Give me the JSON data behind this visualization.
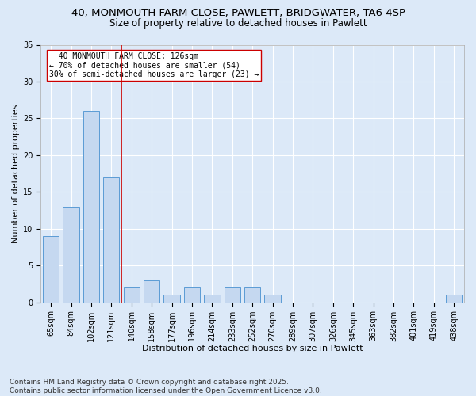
{
  "title_line1": "40, MONMOUTH FARM CLOSE, PAWLETT, BRIDGWATER, TA6 4SP",
  "title_line2": "Size of property relative to detached houses in Pawlett",
  "xlabel": "Distribution of detached houses by size in Pawlett",
  "ylabel": "Number of detached properties",
  "categories": [
    "65sqm",
    "84sqm",
    "102sqm",
    "121sqm",
    "140sqm",
    "158sqm",
    "177sqm",
    "196sqm",
    "214sqm",
    "233sqm",
    "252sqm",
    "270sqm",
    "289sqm",
    "307sqm",
    "326sqm",
    "345sqm",
    "363sqm",
    "382sqm",
    "401sqm",
    "419sqm",
    "438sqm"
  ],
  "values": [
    9,
    13,
    26,
    17,
    2,
    3,
    1,
    2,
    1,
    2,
    2,
    1,
    0,
    0,
    0,
    0,
    0,
    0,
    0,
    0,
    1
  ],
  "bar_color": "#c5d8f0",
  "bar_edge_color": "#5b9bd5",
  "reference_line_x": 3.5,
  "reference_line_color": "#cc0000",
  "annotation_line1": "  40 MONMOUTH FARM CLOSE: 126sqm",
  "annotation_line2": "← 70% of detached houses are smaller (54)",
  "annotation_line3": "30% of semi-detached houses are larger (23) →",
  "annotation_box_color": "#ffffff",
  "annotation_box_edge": "#cc0000",
  "ylim": [
    0,
    35
  ],
  "yticks": [
    0,
    5,
    10,
    15,
    20,
    25,
    30,
    35
  ],
  "background_color": "#dce9f8",
  "grid_color": "#ffffff",
  "footer": "Contains HM Land Registry data © Crown copyright and database right 2025.\nContains public sector information licensed under the Open Government Licence v3.0.",
  "title_fontsize": 9.5,
  "subtitle_fontsize": 8.5,
  "axis_label_fontsize": 8,
  "tick_fontsize": 7,
  "annotation_fontsize": 7,
  "footer_fontsize": 6.5
}
